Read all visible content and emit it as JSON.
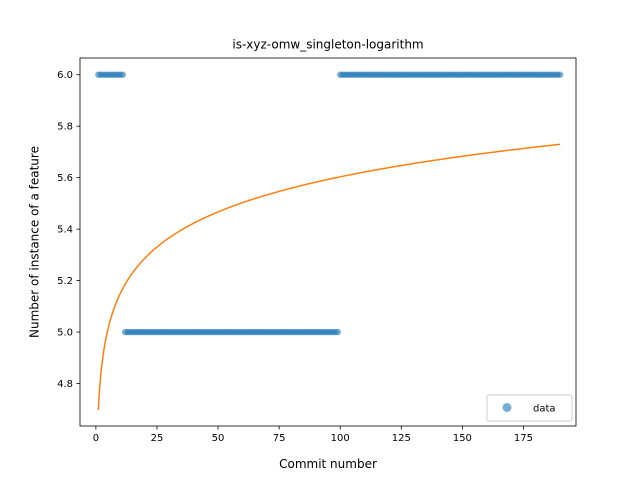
{
  "chart_data": {
    "type": "scatter",
    "title": "is-xyz-omw_singleton-logarithm",
    "xlabel": "Commit number",
    "ylabel": "Number of instance of a feature",
    "xlim": [
      -6.5,
      196.5
    ],
    "ylim": [
      4.635,
      6.065
    ],
    "xticks": [
      0,
      25,
      50,
      75,
      100,
      125,
      150,
      175
    ],
    "yticks": [
      4.8,
      5.0,
      5.2,
      5.4,
      5.6,
      5.8,
      6.0
    ],
    "xtick_labels": [
      "0",
      "25",
      "50",
      "75",
      "100",
      "125",
      "150",
      "175"
    ],
    "ytick_labels": [
      "4.8",
      "5.0",
      "5.2",
      "5.4",
      "5.6",
      "5.8",
      "6.0"
    ],
    "grid": false,
    "legend_position": "lower-right",
    "series": [
      {
        "name": "data",
        "kind": "scatter",
        "color": "#1f77b4",
        "segments": [
          {
            "x_start": 1,
            "x_end": 11,
            "y": 6.0
          },
          {
            "x_start": 12,
            "x_end": 99,
            "y": 5.0
          },
          {
            "x_start": 100,
            "x_end": 190,
            "y": 6.0
          }
        ]
      },
      {
        "kind": "line",
        "color": "#ff7f0e",
        "x_range": [
          1,
          190
        ],
        "fit": "logarithmic",
        "a": 4.697,
        "b": 0.1968
      }
    ]
  }
}
